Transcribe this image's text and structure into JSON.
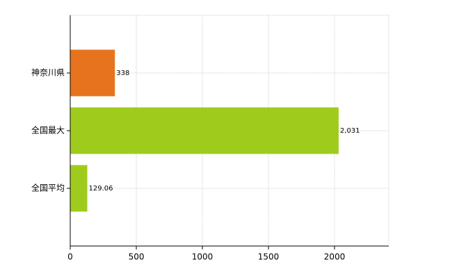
{
  "chart_data": {
    "type": "bar",
    "orientation": "horizontal",
    "categories": [
      "神奈川県",
      "全国最大",
      "全国平均"
    ],
    "values": [
      338,
      2031,
      129.06
    ],
    "value_labels": [
      "338",
      "2,031",
      "129.06"
    ],
    "colors": [
      "#e8731e",
      "#9fcc1c",
      "#9fcc1c"
    ],
    "xlim": [
      0,
      2410
    ],
    "xticks": [
      0,
      500,
      1000,
      1500,
      2000
    ],
    "grid": true
  }
}
